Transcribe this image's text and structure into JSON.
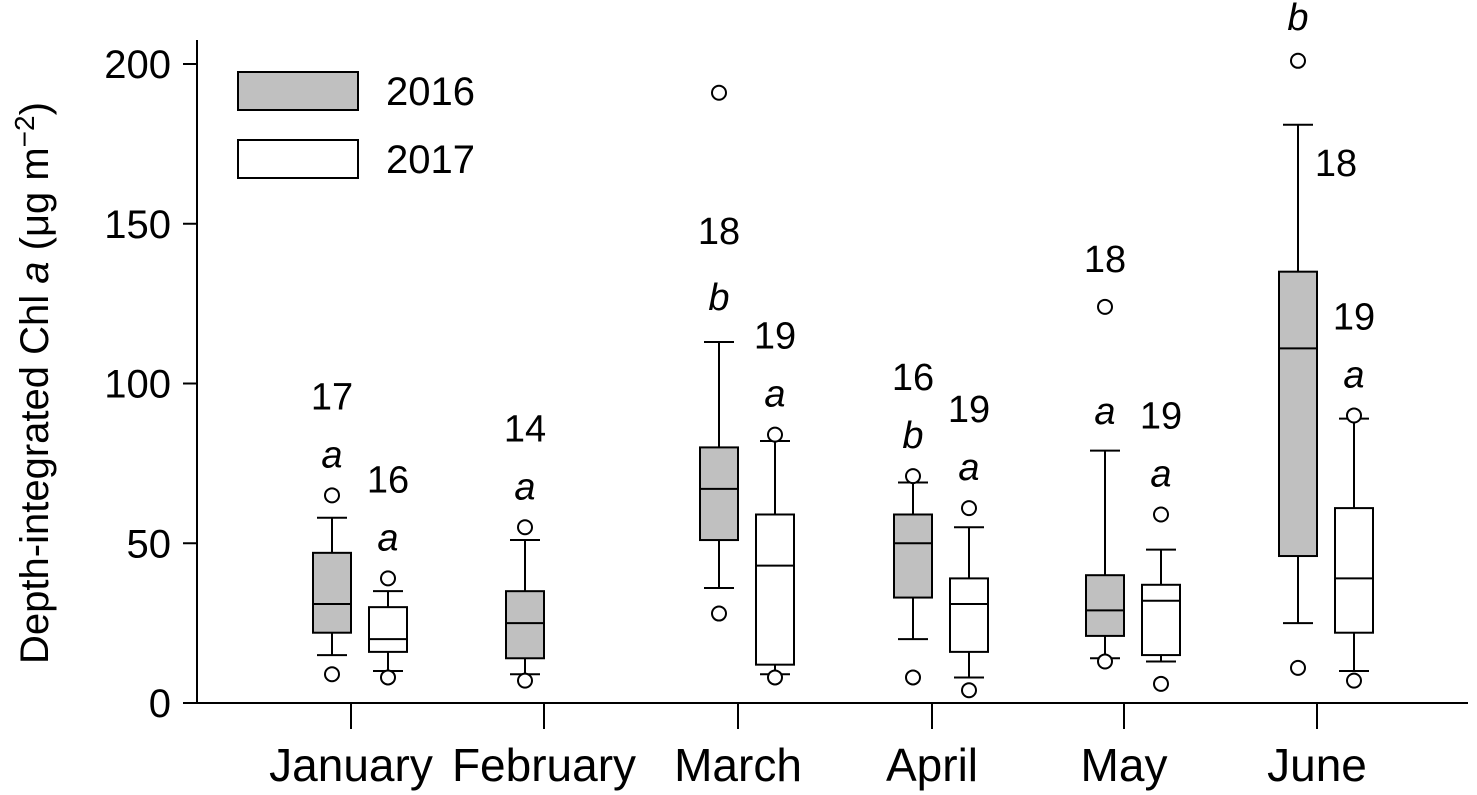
{
  "chart_data": {
    "type": "box",
    "title": "",
    "ylabel_parts": [
      "Depth-integrated Chl ",
      "a",
      " (μg m",
      "−2",
      ")"
    ],
    "xlabel": "",
    "ylim": [
      0,
      200
    ],
    "yticks": [
      0,
      50,
      100,
      150,
      200
    ],
    "categories": [
      "January",
      "February",
      "March",
      "April",
      "May",
      "June"
    ],
    "legend": {
      "position": "top-left",
      "entries": [
        {
          "label": "2016",
          "fill": "#c0c0c0"
        },
        {
          "label": "2017",
          "fill": "#ffffff"
        }
      ]
    },
    "series": [
      {
        "name": "2016",
        "fill": "#c0c0c0",
        "boxes": [
          {
            "category": "January",
            "whisker_low": 15,
            "q1": 22,
            "median": 31,
            "q3": 47,
            "whisker_high": 58,
            "outliers": [
              9,
              65
            ],
            "n": "17",
            "letter": "a"
          },
          {
            "category": "February",
            "whisker_low": 9,
            "q1": 14,
            "median": 25,
            "q3": 35,
            "whisker_high": 51,
            "outliers": [
              7,
              55
            ],
            "n": "14",
            "letter": "a"
          },
          {
            "category": "March",
            "whisker_low": 36,
            "q1": 51,
            "median": 67,
            "q3": 80,
            "whisker_high": 113,
            "outliers": [
              28,
              191
            ],
            "n": "18",
            "letter": "b"
          },
          {
            "category": "April",
            "whisker_low": 20,
            "q1": 33,
            "median": 50,
            "q3": 59,
            "whisker_high": 69,
            "outliers": [
              8,
              71
            ],
            "n": "16",
            "letter": "b"
          },
          {
            "category": "May",
            "whisker_low": 14,
            "q1": 21,
            "median": 29,
            "q3": 40,
            "whisker_high": 79,
            "outliers": [
              13,
              124
            ],
            "n": "18",
            "letter": "a"
          },
          {
            "category": "June",
            "whisker_low": 25,
            "q1": 46,
            "median": 111,
            "q3": 135,
            "whisker_high": 181,
            "outliers": [
              11,
              201
            ],
            "n": "18",
            "letter": "b"
          }
        ]
      },
      {
        "name": "2017",
        "fill": "#ffffff",
        "boxes": [
          {
            "category": "January",
            "whisker_low": 10,
            "q1": 16,
            "median": 20,
            "q3": 30,
            "whisker_high": 35,
            "outliers": [
              8,
              39
            ],
            "n": "16",
            "letter": "a"
          },
          {
            "category": "March",
            "whisker_low": 9,
            "q1": 12,
            "median": 43,
            "q3": 59,
            "whisker_high": 82,
            "outliers": [
              8,
              84
            ],
            "n": "19",
            "letter": "a"
          },
          {
            "category": "April",
            "whisker_low": 8,
            "q1": 16,
            "median": 31,
            "q3": 39,
            "whisker_high": 55,
            "outliers": [
              4,
              61
            ],
            "n": "19",
            "letter": "a"
          },
          {
            "category": "May",
            "whisker_low": 13,
            "q1": 15,
            "median": 32,
            "q3": 37,
            "whisker_high": 48,
            "outliers": [
              6,
              59
            ],
            "n": "19",
            "letter": "a"
          },
          {
            "category": "June",
            "whisker_low": 10,
            "q1": 22,
            "median": 39,
            "q3": 61,
            "whisker_high": 89,
            "outliers": [
              7,
              90
            ],
            "n": "19",
            "letter": "a"
          }
        ]
      }
    ]
  }
}
